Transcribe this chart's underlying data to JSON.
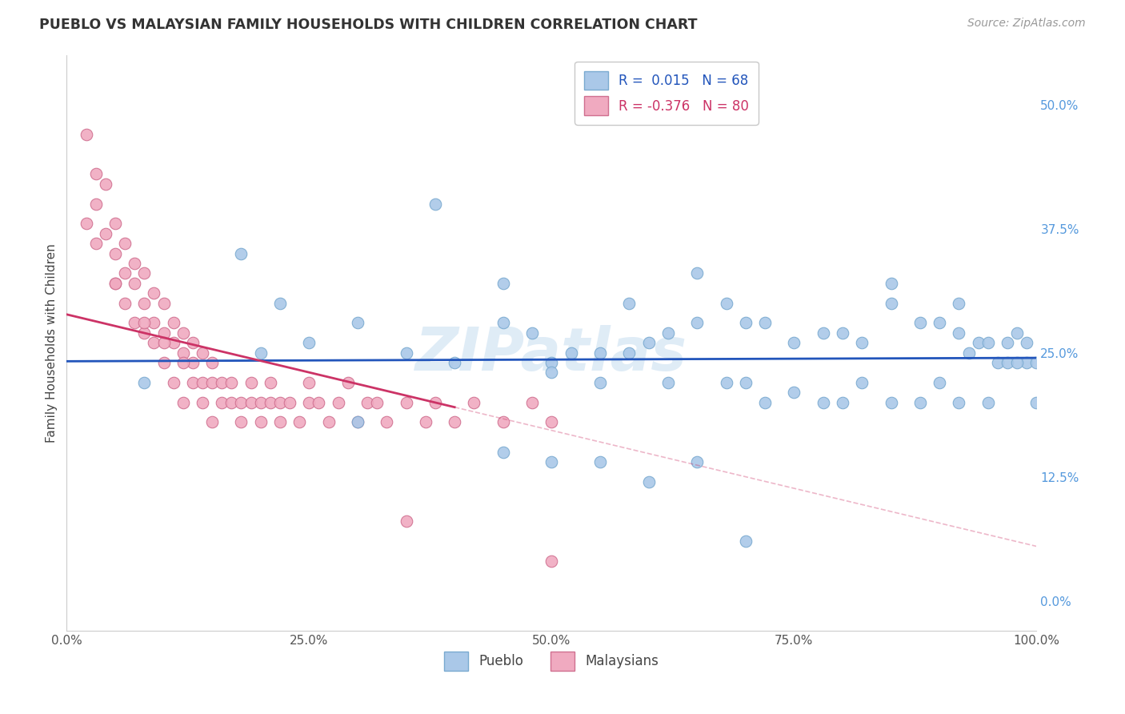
{
  "title": "PUEBLO VS MALAYSIAN FAMILY HOUSEHOLDS WITH CHILDREN CORRELATION CHART",
  "source": "Source: ZipAtlas.com",
  "ylabel": "Family Households with Children",
  "watermark": "ZIPatlas",
  "pueblo_r": "0.015",
  "pueblo_n": "68",
  "malaysian_r": "-0.376",
  "malaysian_n": "80",
  "xlim": [
    0,
    100
  ],
  "ylim": [
    -3,
    55
  ],
  "yticks": [
    0,
    12.5,
    25.0,
    37.5,
    50.0
  ],
  "ytick_labels_right": [
    "0.0%",
    "12.5%",
    "25.0%",
    "37.5%",
    "50.0%"
  ],
  "bg_color": "#ffffff",
  "grid_color": "#c8c8d0",
  "pueblo_color": "#aac8e8",
  "pueblo_edge": "#7aaad0",
  "pueblo_line_color": "#2255bb",
  "malaysian_color": "#f0aac0",
  "malaysian_edge": "#d07090",
  "malaysian_line_color": "#cc3366",
  "legend_box_color": "#ffffff",
  "legend_border_color": "#cccccc",
  "pueblo_x": [
    8,
    18,
    22,
    30,
    38,
    45,
    50,
    55,
    58,
    62,
    65,
    68,
    70,
    72,
    75,
    78,
    80,
    82,
    85,
    85,
    88,
    90,
    92,
    92,
    93,
    94,
    95,
    96,
    97,
    97,
    98,
    99,
    99,
    100,
    20,
    25,
    30,
    35,
    40,
    45,
    48,
    50,
    52,
    55,
    58,
    60,
    62,
    65,
    68,
    70,
    72,
    75,
    78,
    80,
    82,
    85,
    88,
    90,
    92,
    95,
    98,
    100,
    45,
    50,
    55,
    60,
    65,
    70
  ],
  "pueblo_y": [
    22,
    35,
    30,
    28,
    40,
    32,
    24,
    25,
    30,
    27,
    33,
    30,
    28,
    28,
    26,
    27,
    27,
    26,
    30,
    32,
    28,
    28,
    30,
    27,
    25,
    26,
    26,
    24,
    26,
    24,
    27,
    26,
    24,
    24,
    25,
    26,
    18,
    25,
    24,
    28,
    27,
    23,
    25,
    22,
    25,
    26,
    22,
    28,
    22,
    22,
    20,
    21,
    20,
    20,
    22,
    20,
    20,
    22,
    20,
    20,
    24,
    20,
    15,
    14,
    14,
    12,
    14,
    6
  ],
  "malaysian_x": [
    2,
    3,
    3,
    4,
    4,
    5,
    5,
    5,
    6,
    6,
    6,
    7,
    7,
    7,
    8,
    8,
    8,
    9,
    9,
    9,
    10,
    10,
    10,
    11,
    11,
    11,
    12,
    12,
    12,
    13,
    13,
    13,
    14,
    14,
    14,
    15,
    15,
    15,
    16,
    16,
    17,
    17,
    18,
    18,
    19,
    19,
    20,
    20,
    21,
    21,
    22,
    22,
    23,
    24,
    25,
    25,
    26,
    27,
    28,
    29,
    30,
    31,
    32,
    33,
    35,
    37,
    38,
    40,
    42,
    45,
    48,
    50,
    2,
    3,
    5,
    8,
    10,
    12,
    35,
    50
  ],
  "malaysian_y": [
    47,
    43,
    40,
    37,
    42,
    35,
    38,
    32,
    33,
    36,
    30,
    32,
    34,
    28,
    30,
    33,
    27,
    28,
    31,
    26,
    27,
    30,
    24,
    26,
    28,
    22,
    25,
    27,
    20,
    24,
    26,
    22,
    22,
    25,
    20,
    22,
    24,
    18,
    22,
    20,
    20,
    22,
    18,
    20,
    20,
    22,
    18,
    20,
    20,
    22,
    18,
    20,
    20,
    18,
    20,
    22,
    20,
    18,
    20,
    22,
    18,
    20,
    20,
    18,
    20,
    18,
    20,
    18,
    20,
    18,
    20,
    18,
    38,
    36,
    32,
    28,
    26,
    24,
    8,
    4
  ],
  "malaysian_solid_end": 40,
  "malaysian_dash_start": 40
}
